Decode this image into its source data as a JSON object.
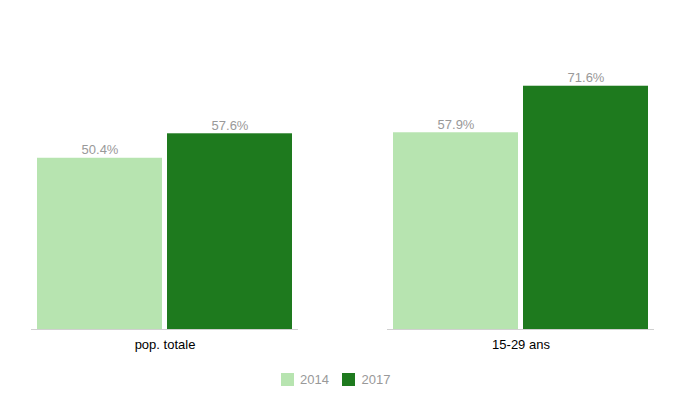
{
  "chart_data": {
    "type": "bar",
    "categories": [
      "pop. totale",
      "15-29 ans"
    ],
    "series": [
      {
        "name": "2014",
        "color": "#b7e4b0",
        "values": [
          50.4,
          57.9
        ],
        "value_labels": [
          "50.4%",
          "57.9%"
        ]
      },
      {
        "name": "2017",
        "color": "#1e7a1e",
        "values": [
          57.6,
          71.6
        ],
        "value_labels": [
          "57.6%",
          "71.6%"
        ]
      }
    ],
    "ylim": [
      0,
      88
    ],
    "grid": false,
    "legend": "bottom",
    "data_labels": true,
    "tick_labels": "x"
  }
}
